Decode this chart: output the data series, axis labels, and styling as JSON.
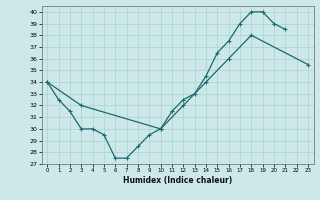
{
  "xlabel": "Humidex (Indice chaleur)",
  "bg_color": "#cde8e8",
  "grid_color": "#b0d4d4",
  "line_color": "#1a6b6b",
  "xlim": [
    -0.5,
    23.5
  ],
  "ylim": [
    27,
    40.5
  ],
  "xticks": [
    0,
    1,
    2,
    3,
    4,
    5,
    6,
    7,
    8,
    9,
    10,
    11,
    12,
    13,
    14,
    15,
    16,
    17,
    18,
    19,
    20,
    21,
    22,
    23
  ],
  "yticks": [
    27,
    28,
    29,
    30,
    31,
    32,
    33,
    34,
    35,
    36,
    37,
    38,
    39,
    40
  ],
  "line1_y": [
    34,
    32.5,
    31.5,
    30,
    30,
    29.5,
    27.5,
    27.5,
    28.5,
    29.5,
    30,
    31.5,
    32.5,
    33,
    34.5,
    36.5,
    37.5,
    39,
    40,
    40,
    39,
    38.5,
    null,
    null
  ],
  "line2_points": [
    [
      0,
      34
    ],
    [
      3,
      32
    ],
    [
      10,
      30
    ],
    [
      12,
      32
    ],
    [
      14,
      34
    ],
    [
      16,
      36
    ],
    [
      18,
      38
    ],
    [
      23,
      35.5
    ]
  ]
}
